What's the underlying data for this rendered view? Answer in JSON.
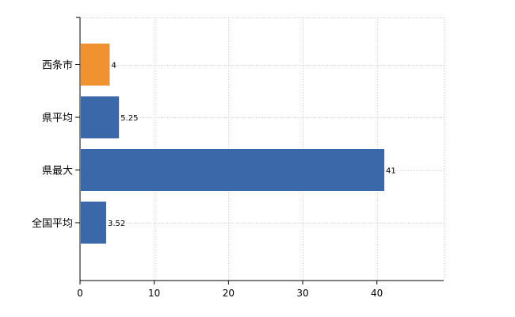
{
  "chart_data": {
    "type": "bar",
    "orientation": "horizontal",
    "categories": [
      "西条市",
      "県平均",
      "県最大",
      "全国平均"
    ],
    "values": [
      4,
      5.25,
      41,
      3.52
    ],
    "value_labels": [
      "4",
      "5.25",
      "41",
      "3.52"
    ],
    "bar_colors": [
      "#f0922f",
      "#3a68a8",
      "#3a68a8",
      "#3a68a8"
    ],
    "xlim": [
      0,
      49
    ],
    "x_ticks": [
      0,
      10,
      20,
      30,
      40
    ],
    "x_tick_labels": [
      "0",
      "10",
      "20",
      "30",
      "40"
    ],
    "grid": true,
    "title": "",
    "xlabel": "",
    "ylabel": ""
  }
}
